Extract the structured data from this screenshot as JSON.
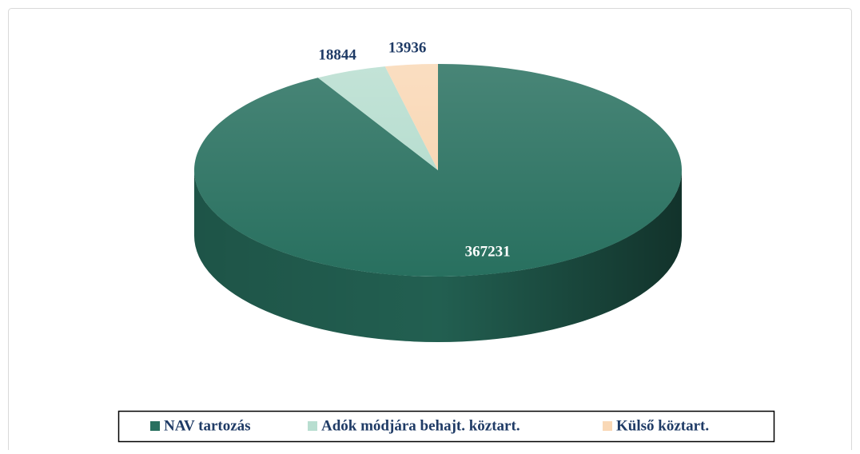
{
  "chart_data": {
    "type": "pie",
    "categories": [
      "NAV tartozás",
      "Adók módjára behajt. köztart.",
      "Külső köztart."
    ],
    "values": [
      367231,
      18844,
      13936
    ],
    "colors": [
      "#28705f",
      "#b8ded0",
      "#f9d8b6"
    ],
    "legend": "bottom"
  }
}
